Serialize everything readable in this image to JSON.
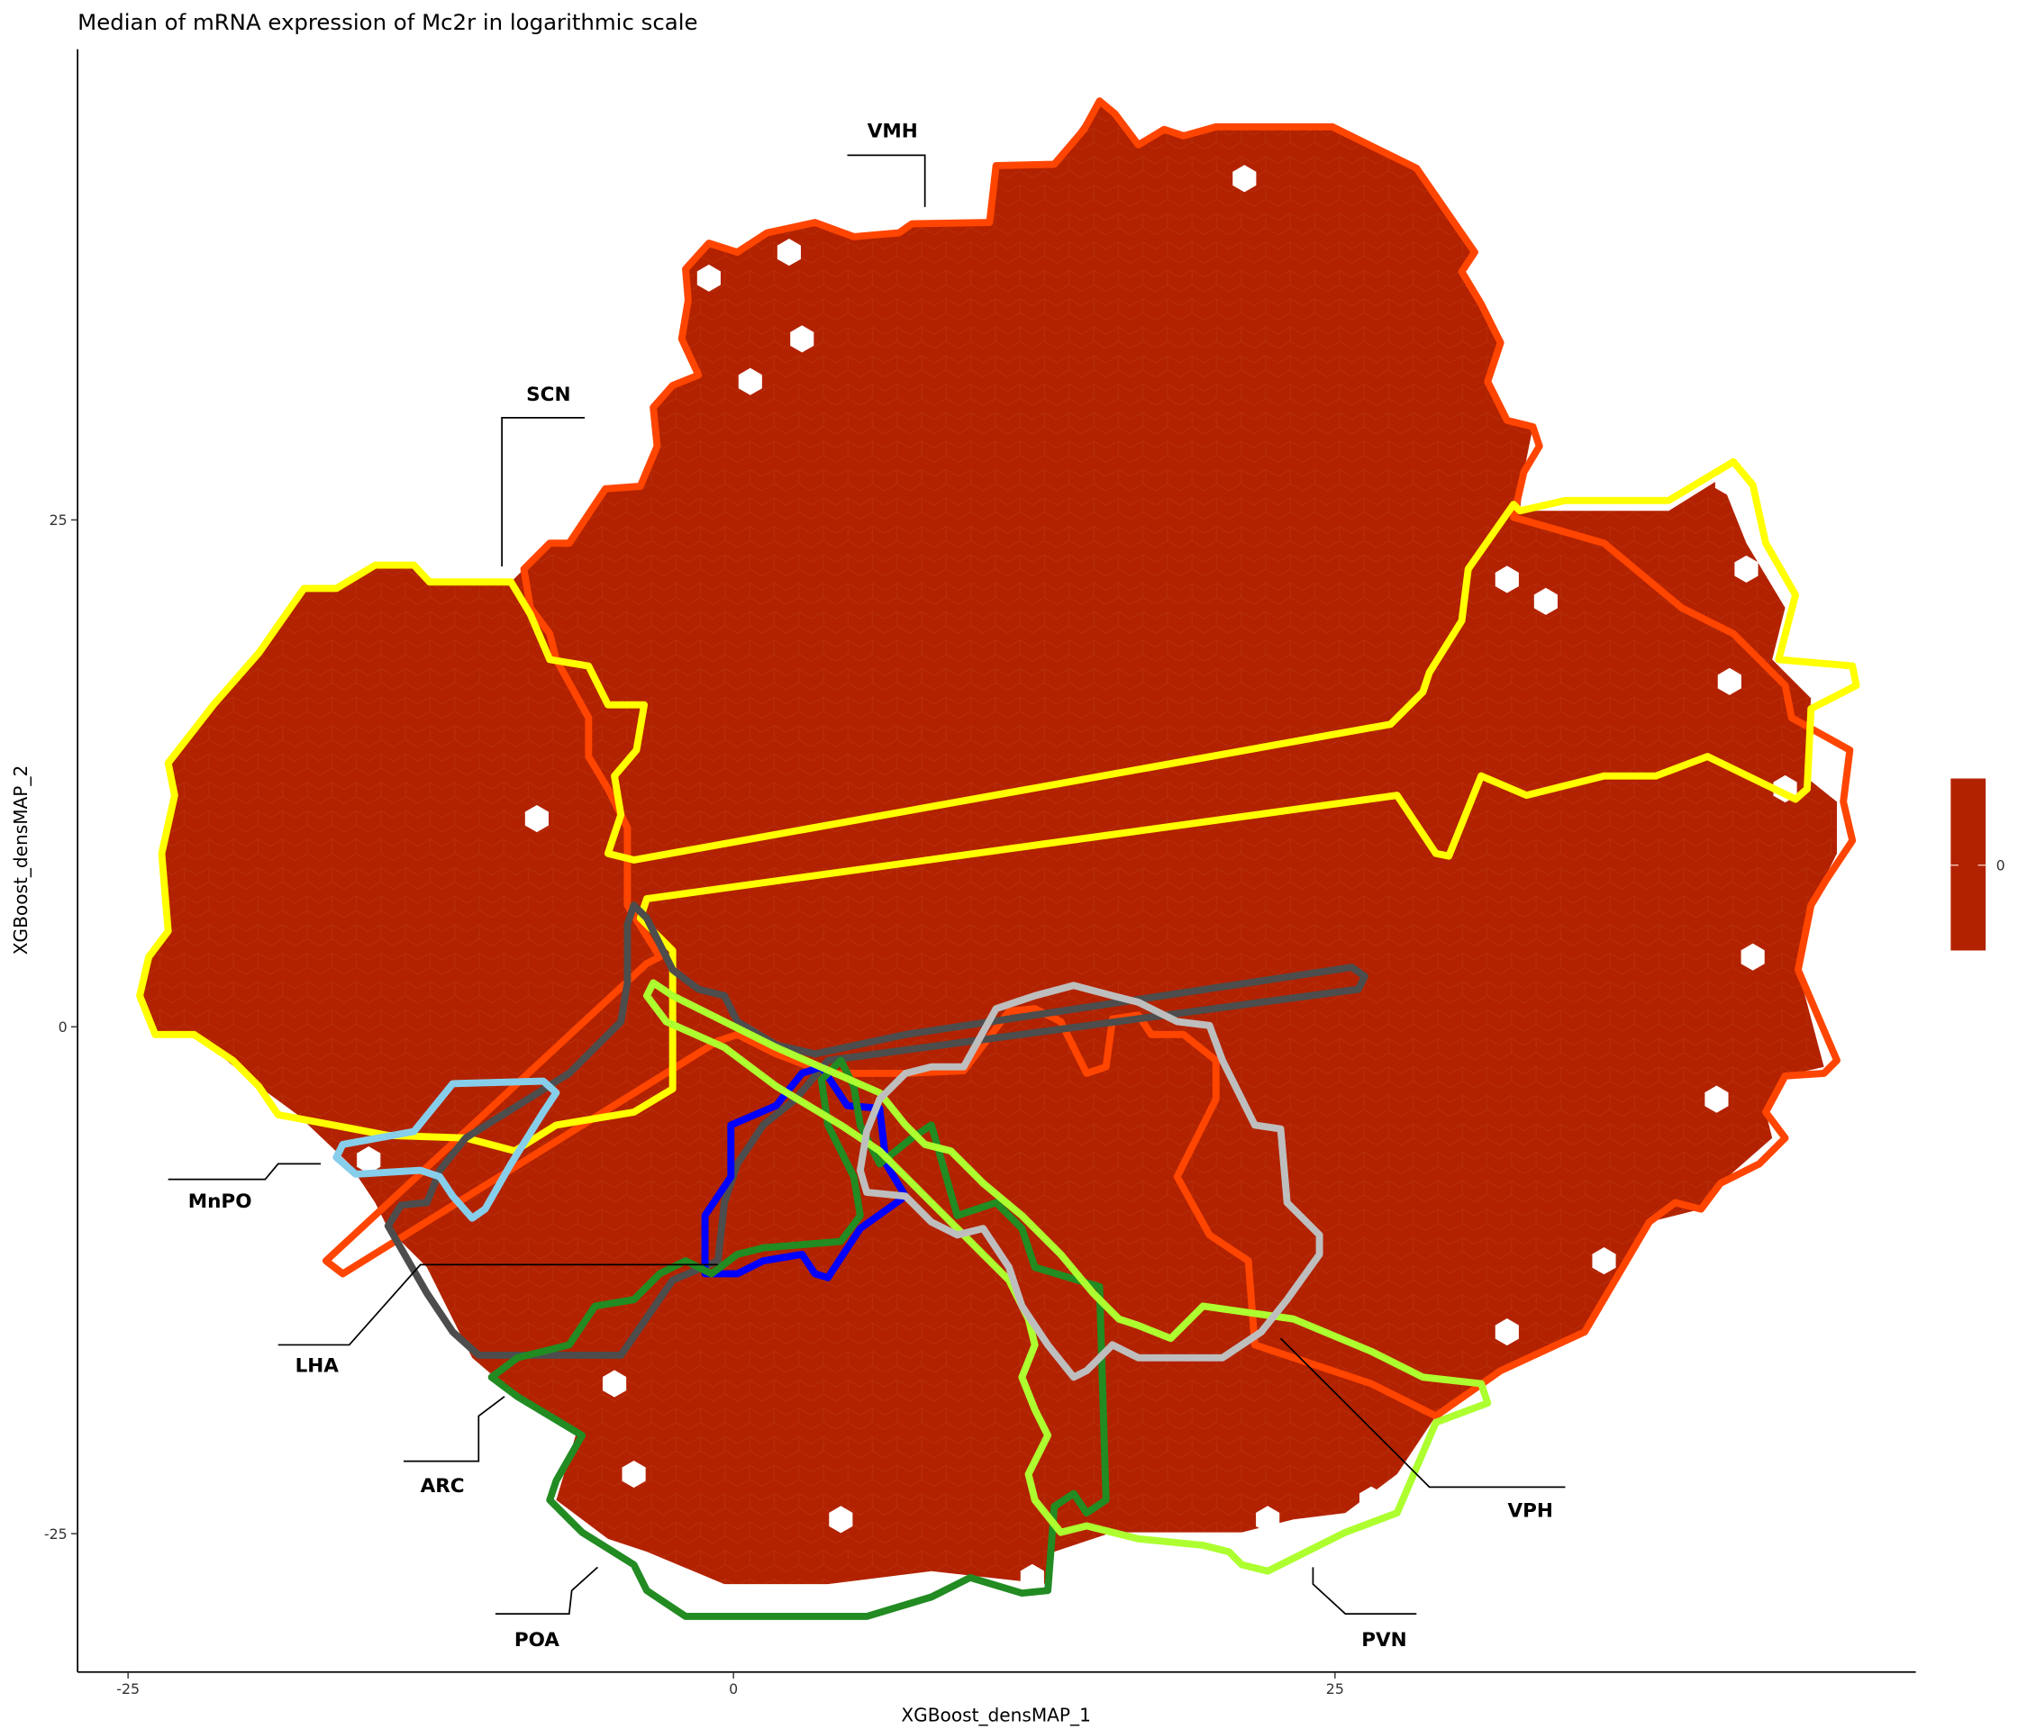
{
  "chart_data": {
    "type": "hexbin",
    "title": "Median of mRNA expression of Mc2r in logarithmic scale",
    "xlabel": "XGBoost_densMAP_1",
    "ylabel": "XGBoost_densMAP_2",
    "x_ticks": [
      "-25",
      "0",
      "25"
    ],
    "y_ticks": [
      "25",
      "0",
      "-25"
    ],
    "xlim": [
      -27,
      49
    ],
    "ylim": [
      -32,
      49
    ],
    "grid": false,
    "hex_value": 0,
    "hex_color": "#B22200",
    "colorbar": {
      "ticks": [
        "0"
      ],
      "color": "#B22200",
      "placement": "right"
    },
    "regions": [
      {
        "label": "VMH",
        "color": "#FF4500"
      },
      {
        "label": "SCN",
        "color": "#FFFF00"
      },
      {
        "label": "MnPO",
        "color": "#87CEEB"
      },
      {
        "label": "LHA",
        "color": "#4D4D4D"
      },
      {
        "label": "ARC",
        "color": "#0000FF"
      },
      {
        "label": "POA",
        "color": "#228B22"
      },
      {
        "label": "PVN",
        "color": "#ADFF2F"
      },
      {
        "label": "VPH",
        "color": "#BEBEBE"
      }
    ]
  }
}
